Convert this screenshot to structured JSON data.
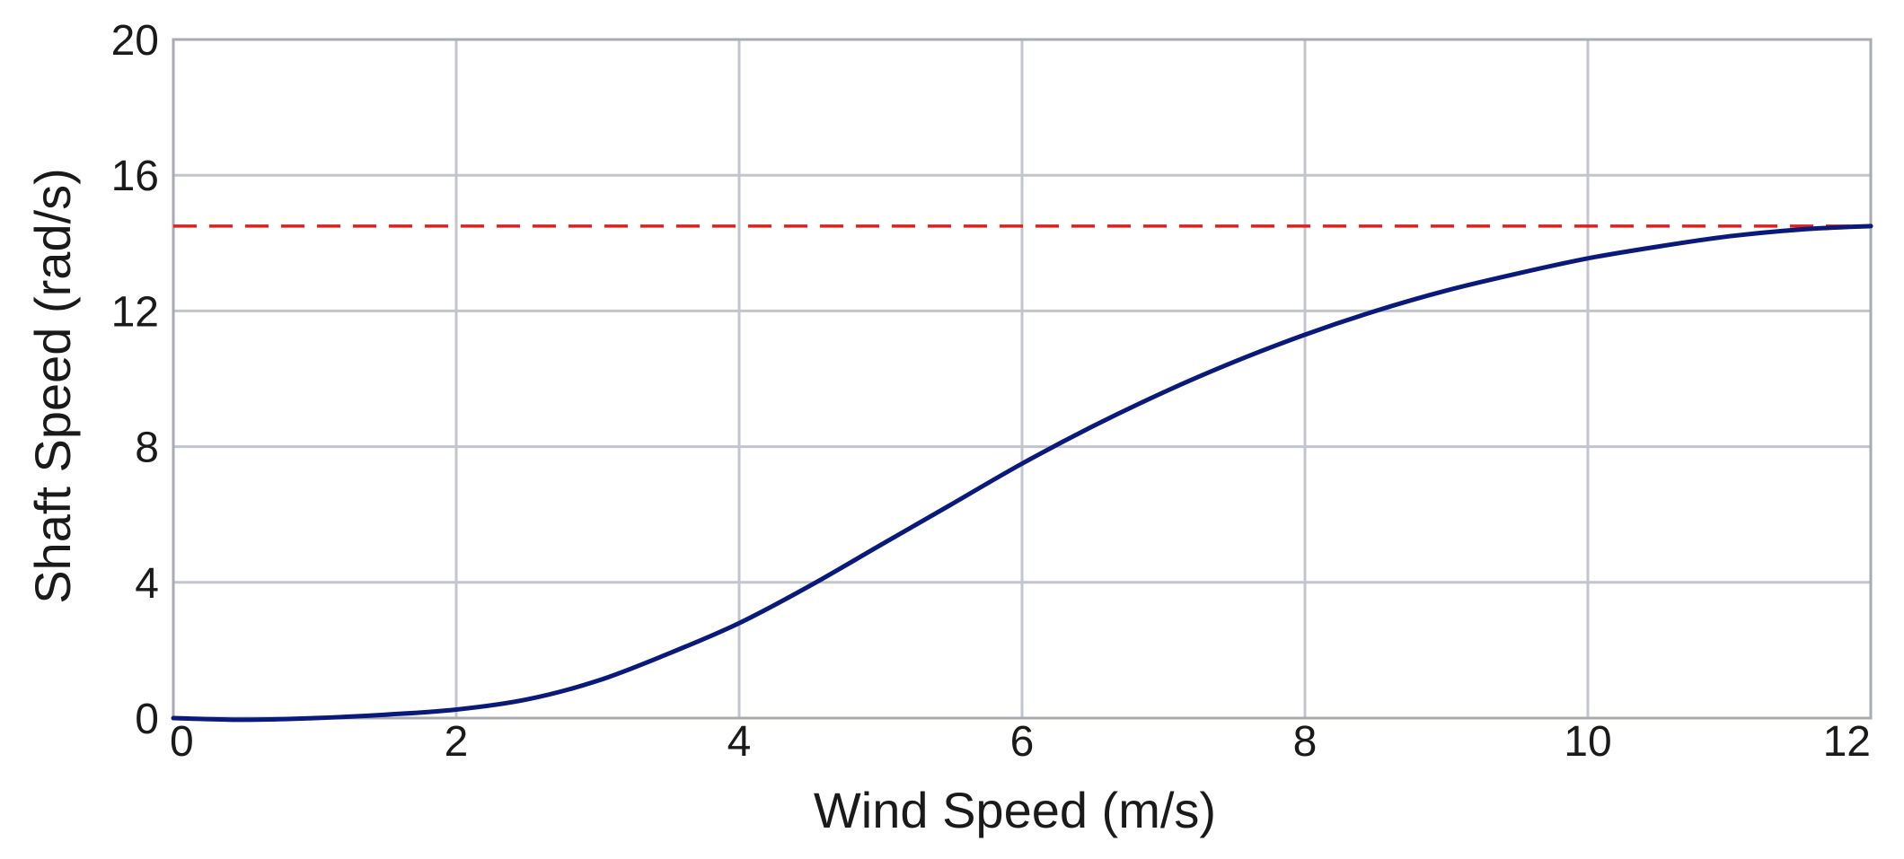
{
  "chart_data": {
    "type": "line",
    "title": "",
    "xlabel": "Wind Speed (m/s)",
    "ylabel": "Shaft Speed (rad/s)",
    "xlim": [
      0,
      12
    ],
    "ylim": [
      0,
      20
    ],
    "xticks": [
      "0",
      "2",
      "4",
      "6",
      "8",
      "10",
      "12"
    ],
    "yticks": [
      "0",
      "4",
      "8",
      "12",
      "16",
      "20"
    ],
    "grid": true,
    "series": [
      {
        "color": "#0a1a7a",
        "style": "solid",
        "x": [
          0,
          0.5,
          1,
          1.5,
          2,
          2.5,
          3,
          3.5,
          4,
          4.5,
          5,
          5.5,
          6,
          6.5,
          7,
          7.5,
          8,
          8.5,
          9,
          9.5,
          10,
          10.5,
          11,
          11.5,
          12
        ],
        "y": [
          0,
          -0.05,
          0,
          0.1,
          0.25,
          0.55,
          1.1,
          1.9,
          2.8,
          3.9,
          5.1,
          6.3,
          7.5,
          8.6,
          9.6,
          10.5,
          11.3,
          12.0,
          12.6,
          13.1,
          13.55,
          13.9,
          14.2,
          14.4,
          14.5
        ]
      }
    ],
    "reference_lines": [
      {
        "y": 14.5,
        "color": "#e02020",
        "style": "dashed"
      }
    ]
  }
}
